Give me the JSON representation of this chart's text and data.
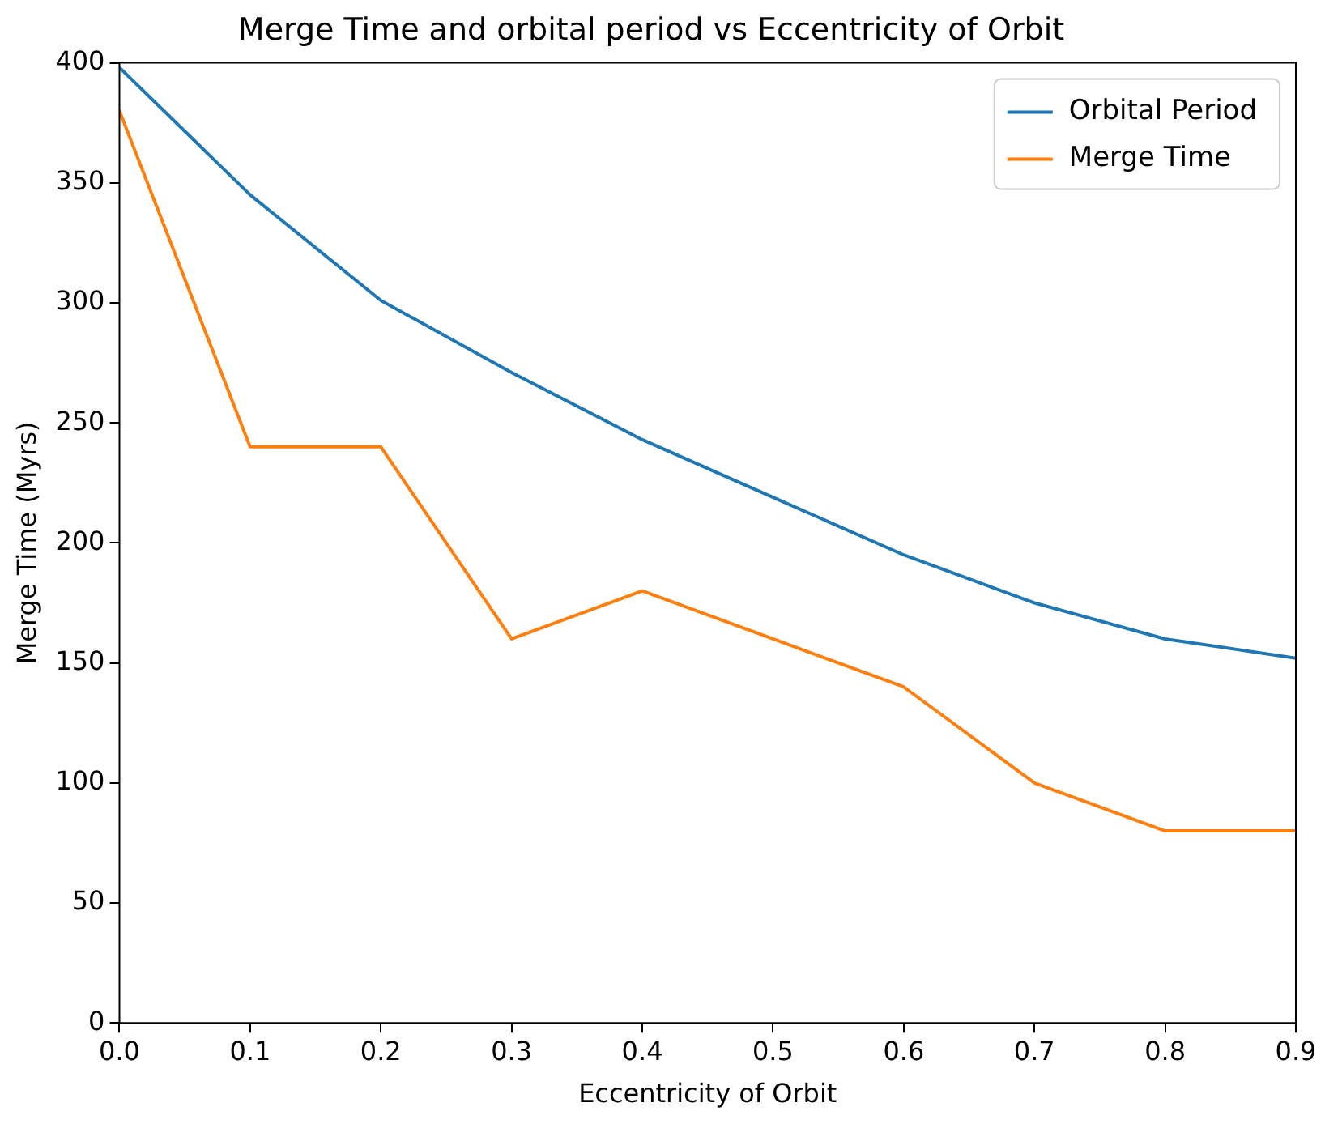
{
  "chart_data": {
    "type": "line",
    "title": "Merge Time and orbital period vs Eccentricity of Orbit",
    "xlabel": "Eccentricity of Orbit",
    "ylabel": "Merge Time (Myrs)",
    "x": [
      0,
      0.1,
      0.2,
      0.3,
      0.4,
      0.5,
      0.6,
      0.7,
      0.8,
      0.9
    ],
    "series": [
      {
        "name": "Orbital Period",
        "color": "#1f77b4",
        "values": [
          398,
          345,
          301,
          271,
          243,
          219,
          195,
          175,
          160,
          152
        ]
      },
      {
        "name": "Merge Time",
        "color": "#ff7f0e",
        "values": [
          380,
          240,
          240,
          160,
          180,
          160,
          140,
          100,
          80,
          80
        ]
      }
    ],
    "xlim": [
      0,
      0.9
    ],
    "xticks": [
      {
        "value": 0,
        "label": "0.0"
      },
      0.1,
      0.2,
      0.3,
      0.4,
      0.5,
      0.6,
      0.7,
      0.8,
      0.9
    ],
    "ylim": [
      0,
      400
    ],
    "yticks": [
      0,
      50,
      100,
      150,
      200,
      250,
      300,
      350,
      400
    ],
    "grid": false,
    "legend": "top right",
    "marker": "none",
    "line_style": "solid"
  }
}
